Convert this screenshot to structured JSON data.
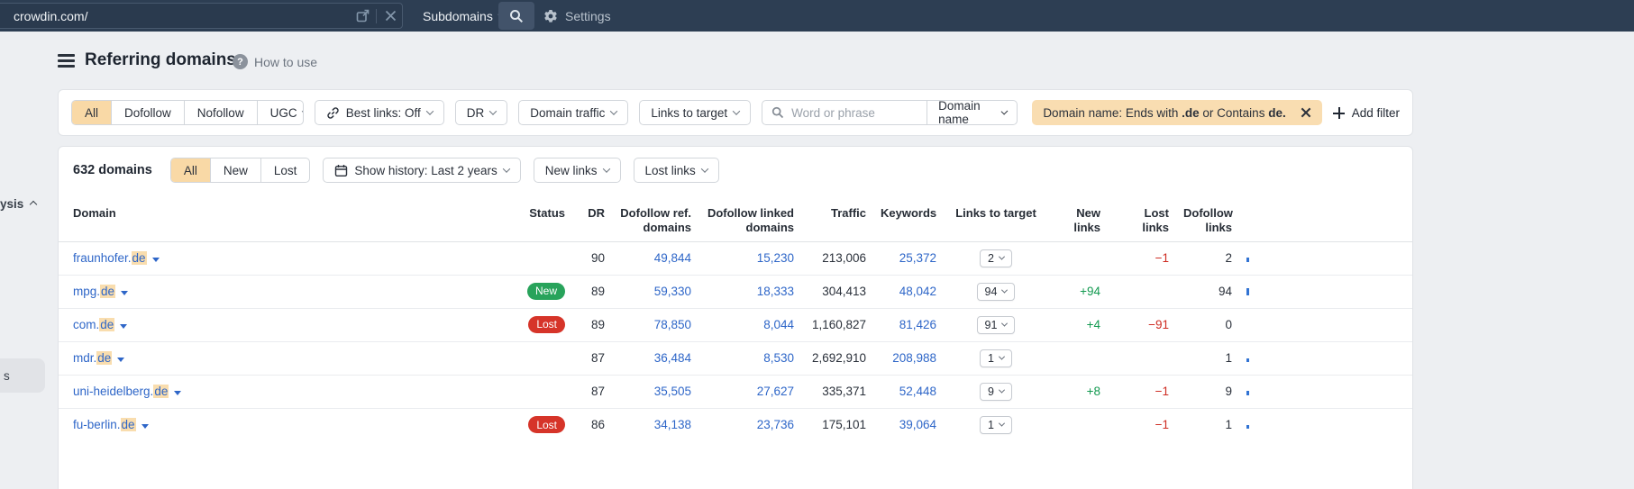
{
  "topbar": {
    "url": "crowdin.com/",
    "mode_label": "Subdomains",
    "settings_label": "Settings"
  },
  "header": {
    "title": "Referring domains",
    "help_label": "How to use"
  },
  "filters": {
    "segments": [
      "All",
      "Dofollow",
      "Nofollow"
    ],
    "ugc_label": "UGC",
    "best_links_label": "Best links: Off",
    "dr_label": "DR",
    "domain_traffic_label": "Domain traffic",
    "links_to_target_label": "Links to target",
    "search_placeholder": "Word or phrase",
    "domain_name_label": "Domain name",
    "chip_parts": [
      "Domain name: Ends with ",
      ".de",
      " or Contains ",
      "de."
    ],
    "add_filter_label": "Add filter"
  },
  "toolbar": {
    "count": "632 domains",
    "segments": [
      "All",
      "New",
      "Lost"
    ],
    "show_history_label": "Show history: Last 2 years",
    "new_links_label": "New links",
    "lost_links_label": "Lost links"
  },
  "table": {
    "columns": [
      "Domain",
      "Status",
      "DR",
      "Dofollow ref. domains",
      "Dofollow linked domains",
      "Traffic",
      "Keywords",
      "Links to target",
      "New links",
      "Lost links",
      "Dofollow links"
    ],
    "rows": [
      {
        "domain_prefix": "fraunhofer.",
        "domain_match": "de",
        "status": "",
        "dr": "90",
        "dofollow_ref": "49,844",
        "dofollow_linked": "15,230",
        "traffic": "213,006",
        "keywords": "25,372",
        "links_to_target": "2",
        "new_links": "",
        "lost_links": "−1",
        "dofollow_links": "2",
        "spark": 5
      },
      {
        "domain_prefix": "mpg.",
        "domain_match": "de",
        "status": "New",
        "dr": "89",
        "dofollow_ref": "59,330",
        "dofollow_linked": "18,333",
        "traffic": "304,413",
        "keywords": "48,042",
        "links_to_target": "94",
        "new_links": "+94",
        "lost_links": "",
        "dofollow_links": "94",
        "spark": 8
      },
      {
        "domain_prefix": "com.",
        "domain_match": "de",
        "status": "Lost",
        "dr": "89",
        "dofollow_ref": "78,850",
        "dofollow_linked": "8,044",
        "traffic": "1,160,827",
        "keywords": "81,426",
        "links_to_target": "91",
        "new_links": "+4",
        "lost_links": "−91",
        "dofollow_links": "0",
        "spark": 0
      },
      {
        "domain_prefix": "mdr.",
        "domain_match": "de",
        "status": "",
        "dr": "87",
        "dofollow_ref": "36,484",
        "dofollow_linked": "8,530",
        "traffic": "2,692,910",
        "keywords": "208,988",
        "links_to_target": "1",
        "new_links": "",
        "lost_links": "",
        "dofollow_links": "1",
        "spark": 4
      },
      {
        "domain_prefix": "uni-heidelberg.",
        "domain_match": "de",
        "status": "",
        "dr": "87",
        "dofollow_ref": "35,505",
        "dofollow_linked": "27,627",
        "traffic": "335,371",
        "keywords": "52,448",
        "links_to_target": "9",
        "new_links": "+8",
        "lost_links": "−1",
        "dofollow_links": "9",
        "spark": 5
      },
      {
        "domain_prefix": "fu-berlin.",
        "domain_match": "de",
        "status": "Lost",
        "dr": "86",
        "dofollow_ref": "34,138",
        "dofollow_linked": "23,736",
        "traffic": "175,101",
        "keywords": "39,064",
        "links_to_target": "1",
        "new_links": "",
        "lost_links": "−1",
        "dofollow_links": "1",
        "spark": 4
      }
    ]
  },
  "sidebar_fragments": {
    "top": "ysis",
    "bottom": "s"
  },
  "colors": {
    "topbar_bg": "#2d3e53",
    "page_bg": "#edeff2",
    "accent_orange": "#f9d9a6",
    "chip_orange": "#f9ddb1",
    "highlight": "#f9ddae",
    "link_blue": "#2e66c8",
    "green": "#149a51",
    "red": "#ce2b21",
    "pill_green": "#28a35b",
    "pill_red": "#d63429"
  }
}
